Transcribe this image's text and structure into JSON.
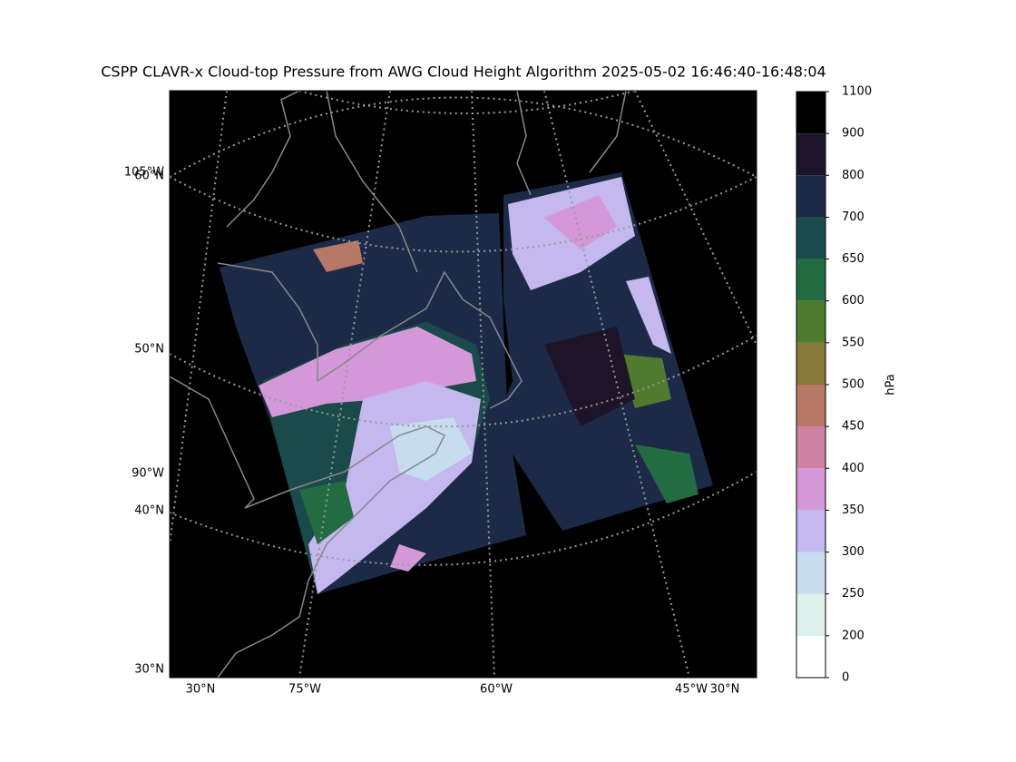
{
  "title": "CSPP CLAVR-x Cloud-top Pressure from AWG Cloud Height Algorithm 2025-05-02 16:46:40-16:48:04",
  "map": {
    "left_labels": [
      "105°W",
      "60°N",
      "50°N",
      "90°W",
      "40°N",
      "30°N"
    ],
    "bottom_labels": [
      "30°N",
      "75°W",
      "60°W",
      "45°W",
      "30°N"
    ]
  },
  "colorbar": {
    "label": "hPa",
    "ticks": [
      0,
      200,
      250,
      300,
      350,
      400,
      450,
      500,
      550,
      600,
      650,
      700,
      800,
      900,
      1100
    ],
    "colors": [
      "#ffffff",
      "#dcf0ec",
      "#c8dcf0",
      "#c4b8ee",
      "#d498d8",
      "#d080a0",
      "#b87866",
      "#857a38",
      "#4f7a30",
      "#236b40",
      "#1a4a4a",
      "#1c2a48",
      "#1e1428",
      "#000000"
    ]
  }
}
